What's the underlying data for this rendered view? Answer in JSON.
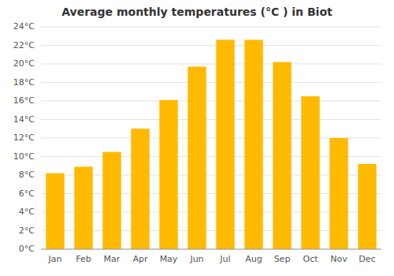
{
  "chart_data": {
    "type": "bar",
    "title": "Average monthly temperatures (°C ) in Biot",
    "categories": [
      "Jan",
      "Feb",
      "Mar",
      "Apr",
      "May",
      "Jun",
      "Jul",
      "Aug",
      "Sep",
      "Oct",
      "Nov",
      "Dec"
    ],
    "values": [
      8.2,
      8.9,
      10.5,
      13.0,
      16.1,
      19.7,
      22.6,
      22.6,
      20.2,
      16.5,
      12.0,
      9.2
    ],
    "color": "#FFBA00",
    "ylim": [
      0,
      24
    ],
    "yticks": [
      {
        "value": 0,
        "label": "0°C"
      },
      {
        "value": 2,
        "label": "2°C"
      },
      {
        "value": 4,
        "label": "4°C"
      },
      {
        "value": 6,
        "label": "6°C"
      },
      {
        "value": 8,
        "label": "8°C"
      },
      {
        "value": 10,
        "label": "10°C"
      },
      {
        "value": 12,
        "label": "12°C"
      },
      {
        "value": 14,
        "label": "14°C"
      },
      {
        "value": 16,
        "label": "16°C"
      },
      {
        "value": 18,
        "label": "18°C"
      },
      {
        "value": 20,
        "label": "20°C"
      },
      {
        "value": 22,
        "label": "22°C"
      },
      {
        "value": 24,
        "label": "24°C"
      }
    ],
    "grid": true
  }
}
